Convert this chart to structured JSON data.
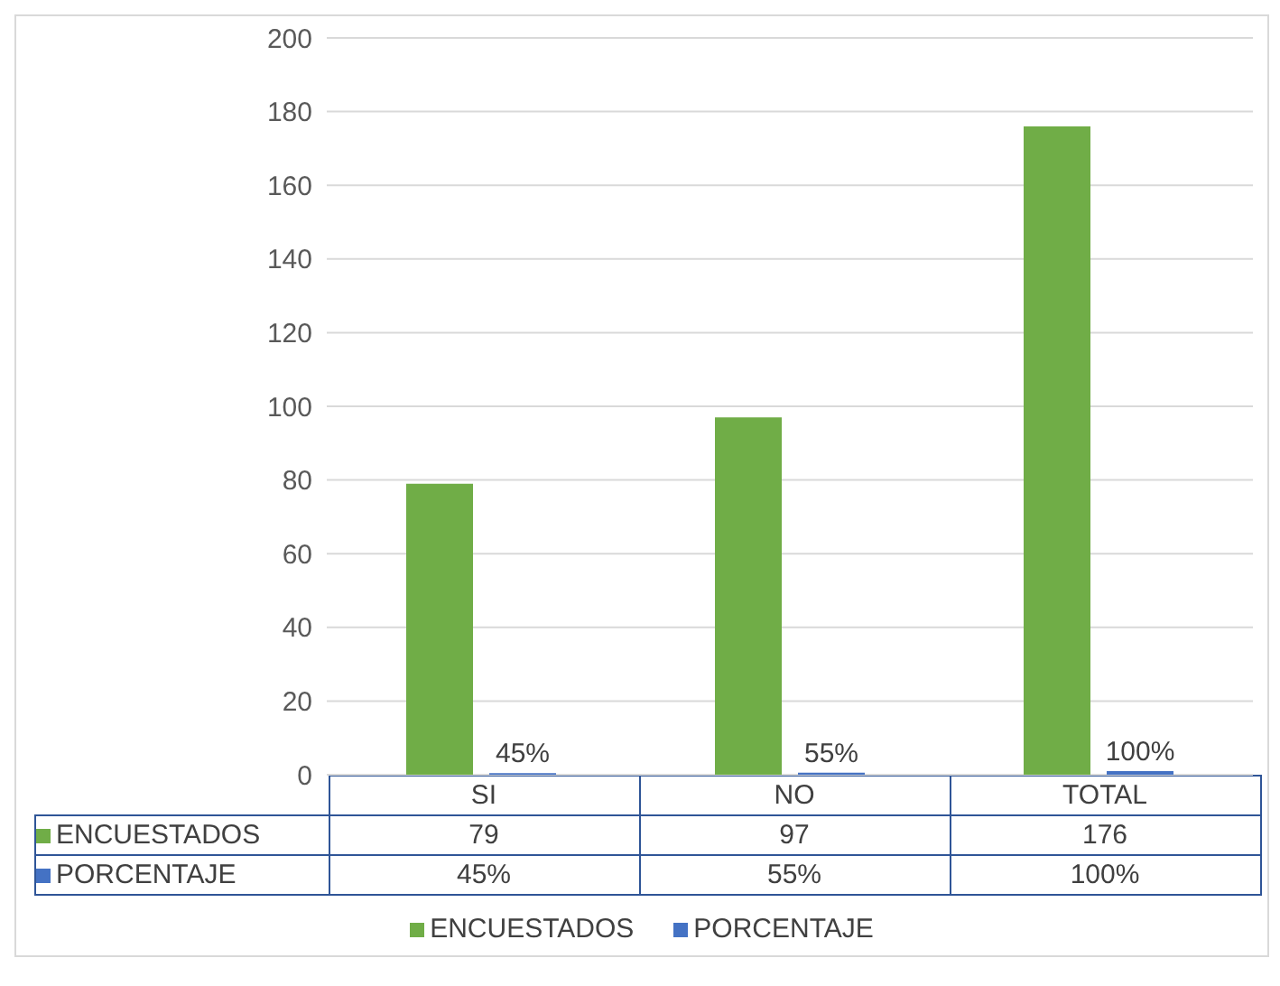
{
  "chart_data": {
    "type": "bar",
    "categories": [
      "SI",
      "NO",
      "TOTAL"
    ],
    "series": [
      {
        "name": "ENCUESTADOS",
        "color": "#70ad47",
        "values": [
          79,
          97,
          176
        ],
        "value_labels": [
          "79",
          "97",
          "176"
        ]
      },
      {
        "name": "PORCENTAJE",
        "color": "#4472c4",
        "values": [
          0.45,
          0.55,
          1
        ],
        "value_labels": [
          "45%",
          "55%",
          "100%"
        ],
        "data_labels": true
      }
    ],
    "ylim": [
      0,
      200
    ],
    "yticks": [
      0,
      20,
      40,
      60,
      80,
      100,
      120,
      140,
      160,
      180,
      200
    ],
    "grid": "y",
    "legend": "bottom"
  }
}
